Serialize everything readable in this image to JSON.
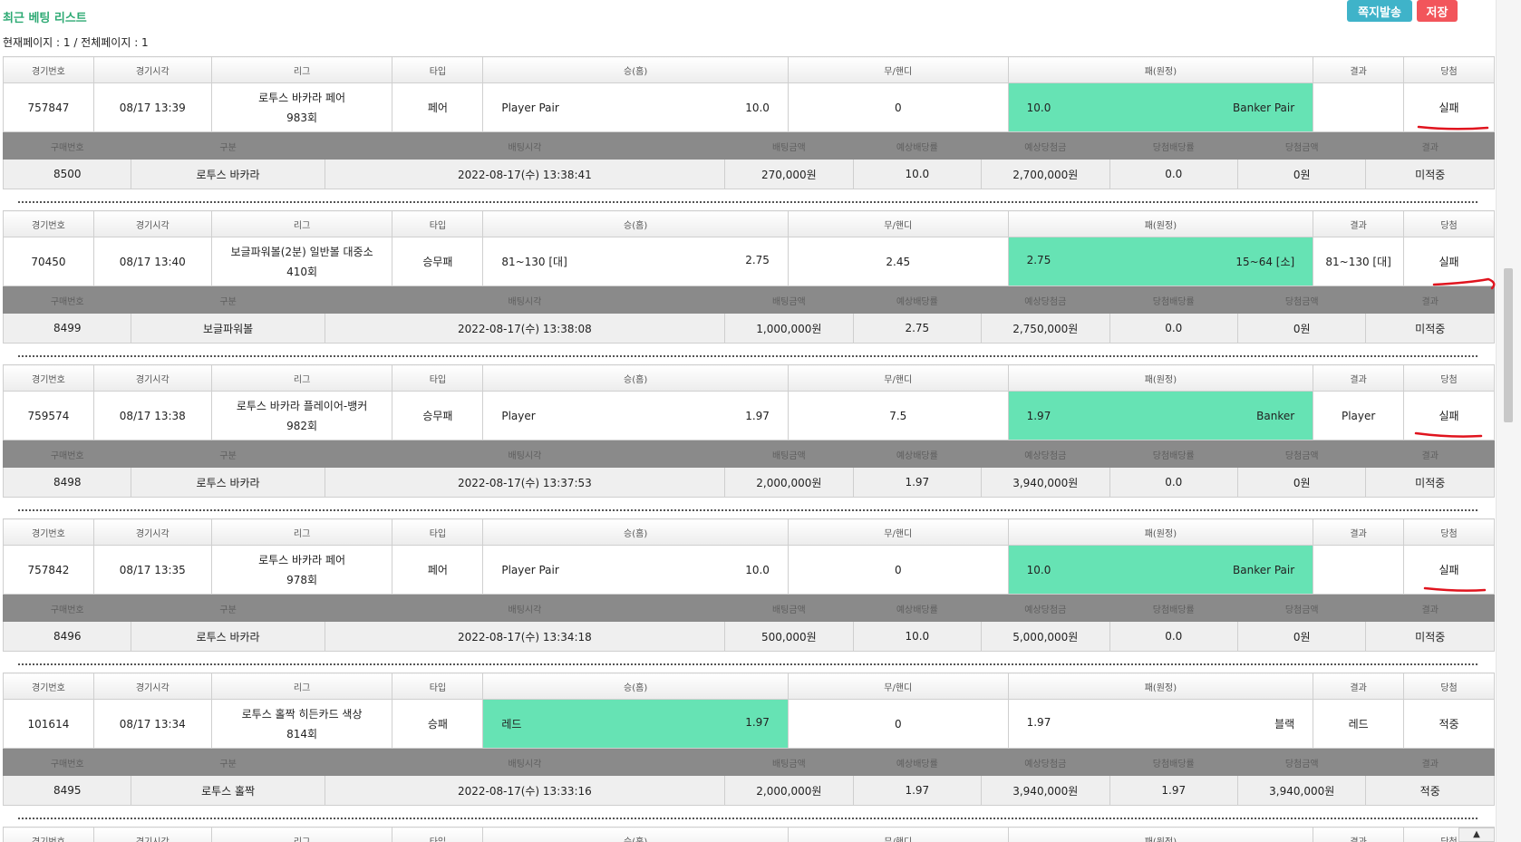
{
  "page": {
    "title": "최근 베팅 리스트",
    "page_info": "현재페이지 : 1 / 전체페이지 : 1",
    "btn_message": "쪽지발송",
    "btn_save": "저장",
    "scroll_down": "▲"
  },
  "headers": [
    "경기번호",
    "경기시각",
    "리그",
    "타입",
    "승(홈)",
    "무/핸디",
    "패(원정)",
    "결과",
    "당첨"
  ],
  "sub_headers": [
    "구매번호",
    "구분",
    "배팅시각",
    "배팅금액",
    "예상배당률",
    "예상당첨금",
    "당첨배당률",
    "당첨금액",
    "결과"
  ],
  "bets": [
    {
      "game_no": "757847",
      "time": "08/17 13:39",
      "league": "로투스 바카라 페어",
      "round": "983회",
      "type": "페어",
      "home": "Player Pair",
      "home_odds": "10.0",
      "draw": "0",
      "away_odds": "10.0",
      "away": "Banker Pair",
      "result": "",
      "win": "실패",
      "highlight": "away",
      "win_status": "fail",
      "purchase_no": "8500",
      "category": "로투스 바카라",
      "bet_time": "2022-08-17(수) 13:38:41",
      "amount": "270,000원",
      "exp_odds": "10.0",
      "exp_win": "2,700,000원",
      "win_odds": "0.0",
      "win_amount": "0원",
      "status": "미적중"
    },
    {
      "game_no": "70450",
      "time": "08/17 13:40",
      "league": "보글파워볼(2분) 일반볼 대중소",
      "round": "410회",
      "type": "승무패",
      "home": "81~130 [대]",
      "home_odds": "2.75",
      "draw": "2.45",
      "away_odds": "2.75",
      "away": "15~64 [소]",
      "result": "81~130 [대]",
      "win": "실패",
      "highlight": "away",
      "win_status": "fail",
      "purchase_no": "8499",
      "category": "보글파워볼",
      "bet_time": "2022-08-17(수) 13:38:08",
      "amount": "1,000,000원",
      "exp_odds": "2.75",
      "exp_win": "2,750,000원",
      "win_odds": "0.0",
      "win_amount": "0원",
      "status": "미적중"
    },
    {
      "game_no": "759574",
      "time": "08/17 13:38",
      "league": "로투스 바카라 플레이어-뱅커",
      "round": "982회",
      "type": "승무패",
      "home": "Player",
      "home_odds": "1.97",
      "draw": "7.5",
      "away_odds": "1.97",
      "away": "Banker",
      "result": "Player",
      "win": "실패",
      "highlight": "away",
      "win_status": "fail",
      "purchase_no": "8498",
      "category": "로투스 바카라",
      "bet_time": "2022-08-17(수) 13:37:53",
      "amount": "2,000,000원",
      "exp_odds": "1.97",
      "exp_win": "3,940,000원",
      "win_odds": "0.0",
      "win_amount": "0원",
      "status": "미적중"
    },
    {
      "game_no": "757842",
      "time": "08/17 13:35",
      "league": "로투스 바카라 페어",
      "round": "978회",
      "type": "페어",
      "home": "Player Pair",
      "home_odds": "10.0",
      "draw": "0",
      "away_odds": "10.0",
      "away": "Banker Pair",
      "result": "",
      "win": "실패",
      "highlight": "away",
      "win_status": "fail",
      "purchase_no": "8496",
      "category": "로투스 바카라",
      "bet_time": "2022-08-17(수) 13:34:18",
      "amount": "500,000원",
      "exp_odds": "10.0",
      "exp_win": "5,000,000원",
      "win_odds": "0.0",
      "win_amount": "0원",
      "status": "미적중"
    },
    {
      "game_no": "101614",
      "time": "08/17 13:34",
      "league": "로투스 홀짝 히든카드 색상",
      "round": "814회",
      "type": "승패",
      "home": "레드",
      "home_odds": "1.97",
      "draw": "0",
      "away_odds": "1.97",
      "away": "블랙",
      "result": "레드",
      "win": "적중",
      "highlight": "home",
      "win_status": "win",
      "purchase_no": "8495",
      "category": "로투스 홀짝",
      "bet_time": "2022-08-17(수) 13:33:16",
      "amount": "2,000,000원",
      "exp_odds": "1.97",
      "exp_win": "3,940,000원",
      "win_odds": "1.97",
      "win_amount": "3,940,000원",
      "status": "적중"
    }
  ],
  "colors": {
    "title": "#2eaa74",
    "highlight": "#66e3b4",
    "fail": "#e8453c",
    "win": "#3b9be0",
    "underline": "#e0141e"
  }
}
